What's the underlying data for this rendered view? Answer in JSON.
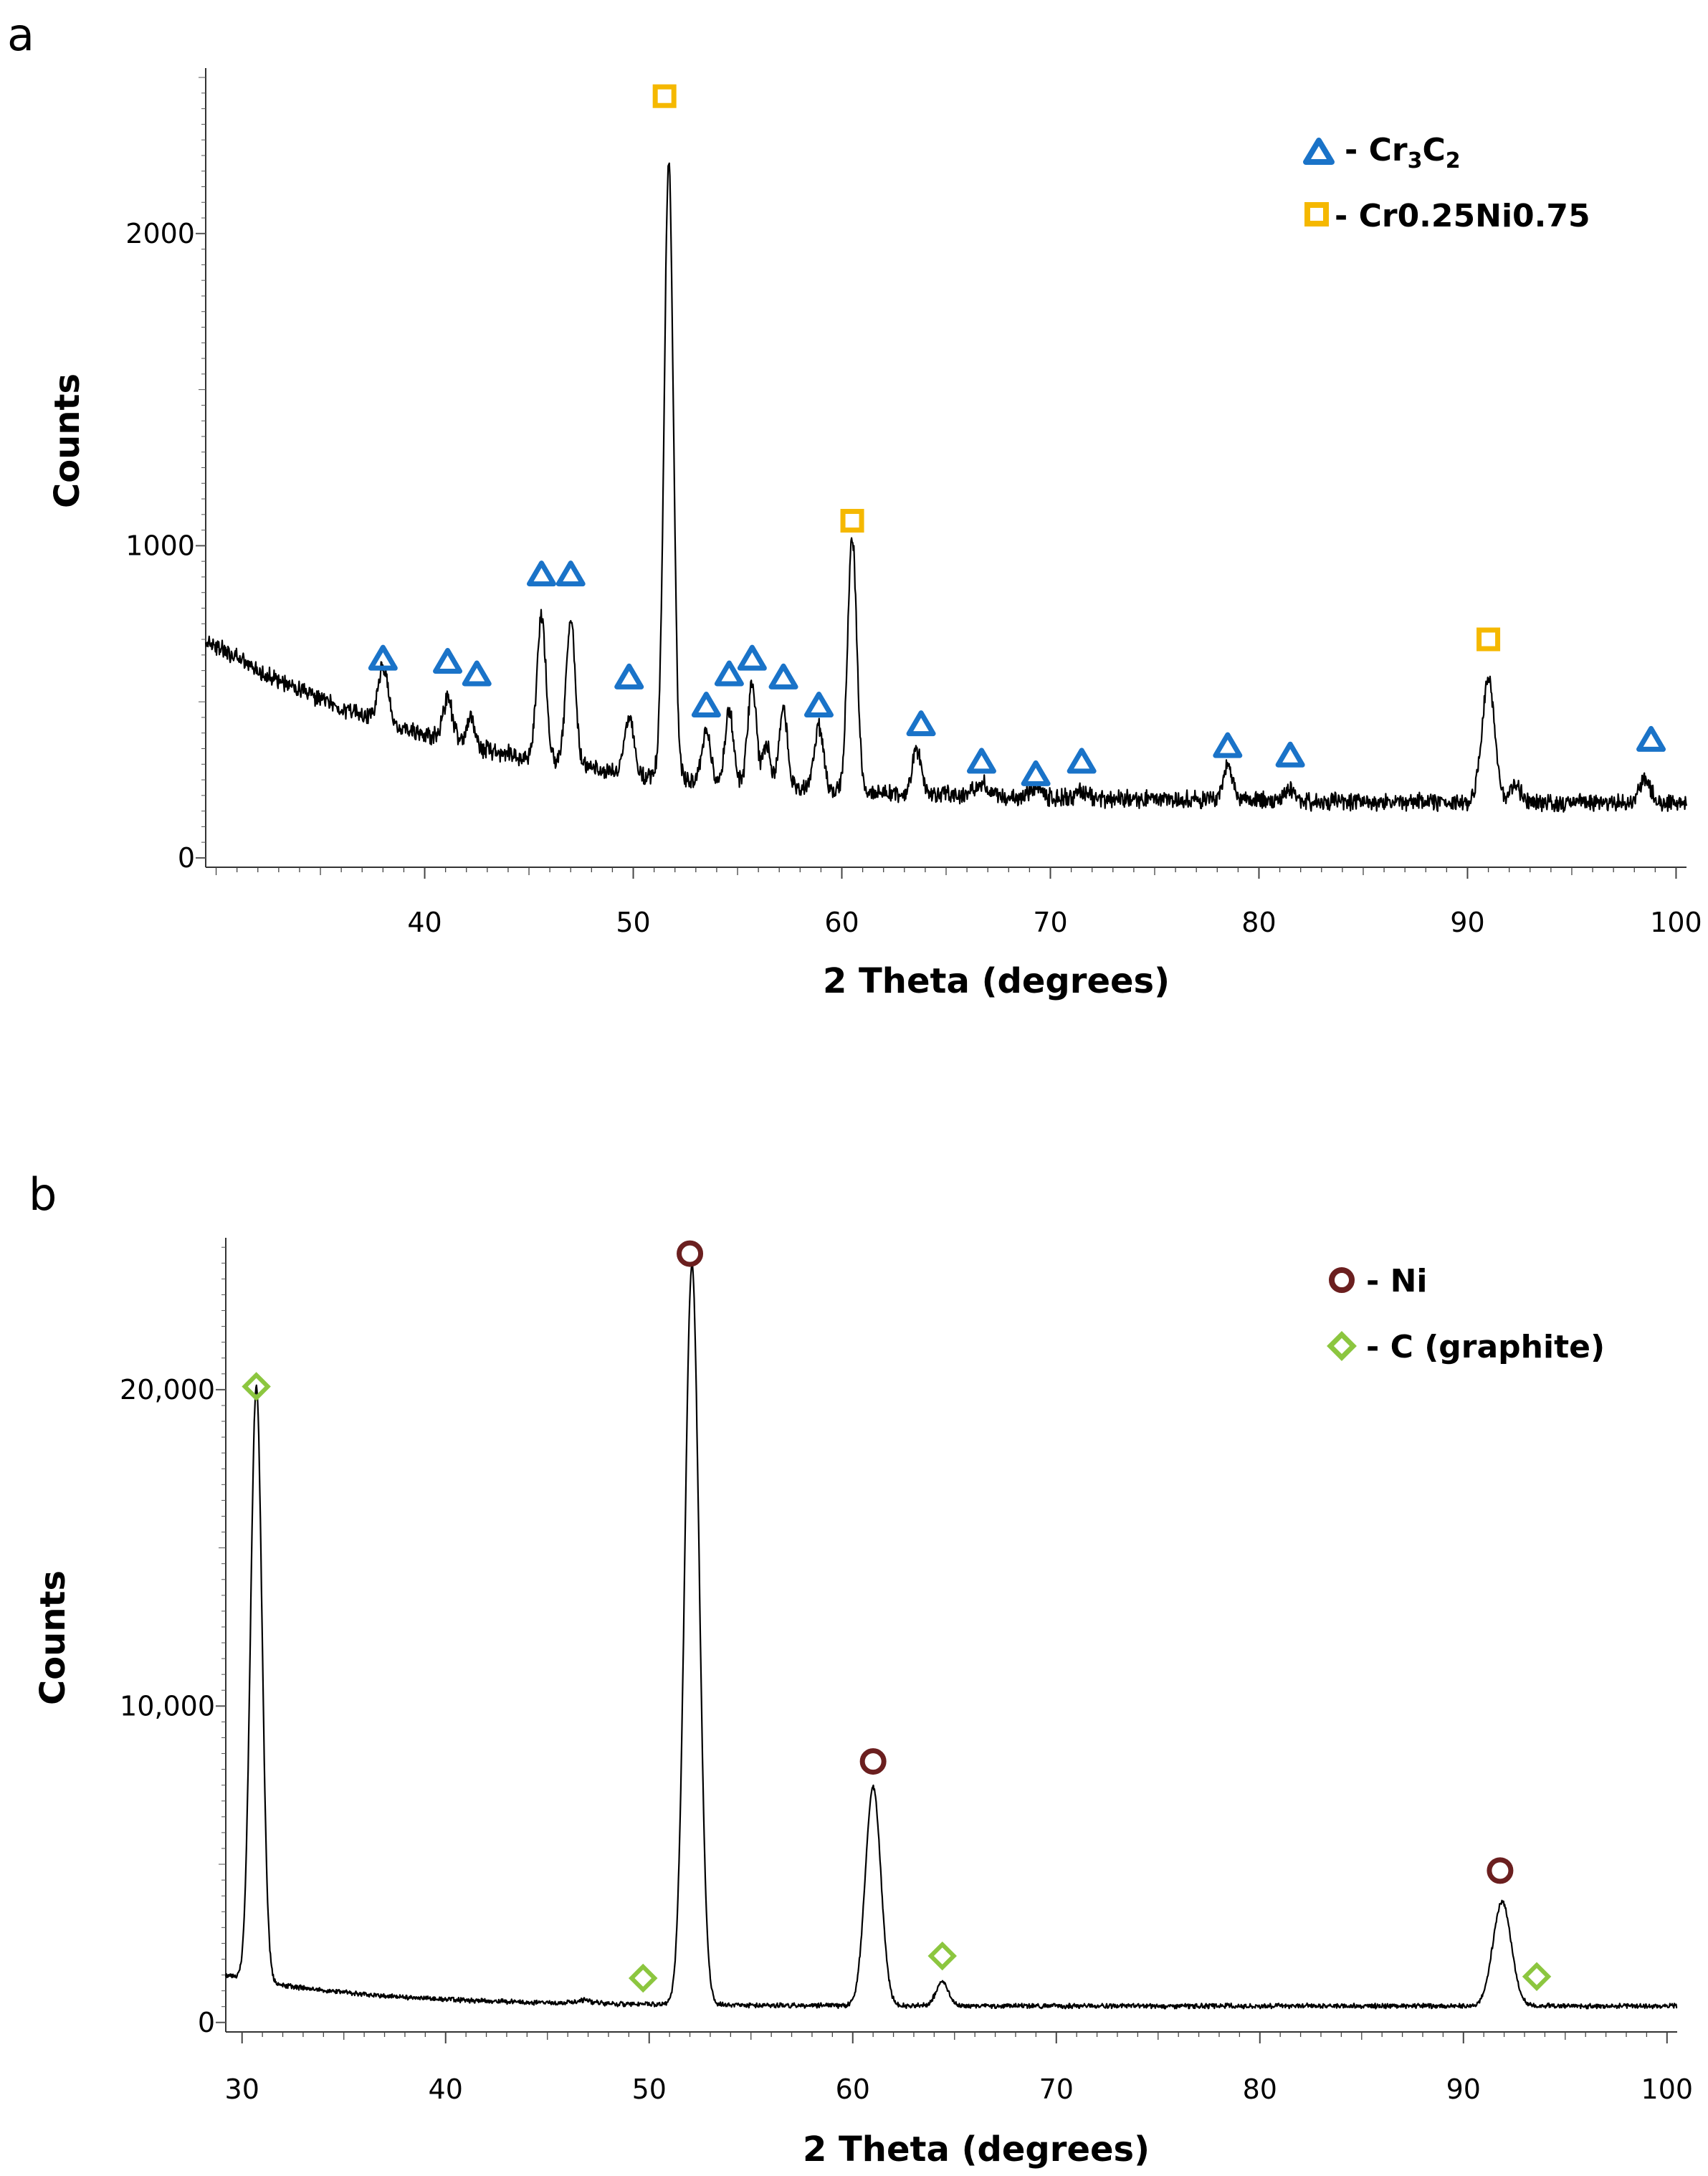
{
  "chart_data": [
    {
      "panel": "a",
      "type": "line",
      "xlabel": "2 Theta (degrees)",
      "ylabel": "Counts",
      "xlim": [
        29.5,
        100.5
      ],
      "ylim": [
        -30,
        2530
      ],
      "xticks": [
        40,
        50,
        60,
        70,
        80,
        90,
        100
      ],
      "yticks": [
        0,
        1000,
        2000
      ],
      "ytick_labels": [
        "0",
        "1000",
        "2000"
      ],
      "background": {
        "start": 700,
        "decay": 12,
        "floor": 175
      },
      "noise": 22,
      "series": [
        {
          "name": "pattern",
          "peaks": [
            [
              38.0,
              175,
              0.25
            ],
            [
              41.1,
              130,
              0.25
            ],
            [
              42.2,
              90,
              0.2
            ],
            [
              45.6,
              460,
              0.22
            ],
            [
              47.0,
              470,
              0.22
            ],
            [
              49.8,
              180,
              0.22
            ],
            [
              51.7,
              1970,
              0.22
            ],
            [
              53.5,
              160,
              0.2
            ],
            [
              54.6,
              230,
              0.2
            ],
            [
              55.7,
              330,
              0.2
            ],
            [
              56.4,
              130,
              0.18
            ],
            [
              57.2,
              250,
              0.2
            ],
            [
              58.9,
              200,
              0.22
            ],
            [
              60.5,
              810,
              0.22
            ],
            [
              63.6,
              140,
              0.22
            ],
            [
              66.7,
              40,
              0.3
            ],
            [
              69.3,
              30,
              0.3
            ],
            [
              71.5,
              20,
              0.3
            ],
            [
              78.5,
              120,
              0.22
            ],
            [
              81.5,
              40,
              0.25
            ],
            [
              91.0,
              400,
              0.3
            ],
            [
              92.3,
              50,
              0.3
            ],
            [
              98.5,
              80,
              0.25
            ]
          ]
        }
      ],
      "markers": [
        {
          "series": "Cr3C2",
          "shape": "triangle",
          "x": [
            38.0,
            41.1,
            42.5,
            45.6,
            47.0,
            49.8,
            53.5,
            54.6,
            55.7,
            57.2,
            58.9,
            63.8,
            66.7,
            69.3,
            71.5,
            78.5,
            81.5,
            98.8
          ],
          "y": [
            640,
            630,
            590,
            910,
            910,
            580,
            490,
            590,
            640,
            580,
            490,
            430,
            310,
            270,
            310,
            360,
            330,
            380
          ]
        },
        {
          "series": "Cr0.25Ni0.75",
          "shape": "square",
          "x": [
            51.5,
            60.5,
            91.0
          ],
          "y": [
            2440,
            1080,
            700
          ]
        }
      ],
      "legend": {
        "position": "top-right",
        "entries": [
          {
            "label_main": "- Cr",
            "sub1": "3",
            "mid": "C",
            "sub2": "2",
            "shape": "triangle",
            "color": "#1a73c8"
          },
          {
            "label": "- Cr0.25Ni0.75",
            "shape": "square",
            "color": "#f5b800"
          }
        ]
      }
    },
    {
      "panel": "b",
      "type": "line",
      "xlabel": "2 Theta (degrees)",
      "ylabel": "Counts",
      "xlim": [
        29.2,
        100.5
      ],
      "ylim": [
        -300,
        24800
      ],
      "xticks": [
        30,
        40,
        50,
        60,
        70,
        80,
        90,
        100
      ],
      "yticks": [
        0,
        10000,
        20000
      ],
      "ytick_labels": [
        "0",
        "10,000",
        "20,000"
      ],
      "background": {
        "start": 1500,
        "decay": 7,
        "floor": 520
      },
      "noise": 60,
      "series": [
        {
          "name": "pattern",
          "peaks": [
            [
              30.7,
              18800,
              0.28
            ],
            [
              52.1,
              23400,
              0.35
            ],
            [
              61.0,
              6900,
              0.38
            ],
            [
              64.4,
              750,
              0.3
            ],
            [
              91.9,
              3300,
              0.45
            ],
            [
              46.8,
              100,
              0.4
            ]
          ]
        }
      ],
      "markers": [
        {
          "series": "Ni",
          "shape": "circle",
          "x": [
            52.0,
            61.0,
            91.8
          ],
          "y": [
            24300,
            8250,
            4800
          ]
        },
        {
          "series": "C (graphite)",
          "shape": "diamond",
          "x": [
            30.7,
            49.7,
            64.4,
            93.6
          ],
          "y": [
            20100,
            1400,
            2100,
            1450
          ]
        }
      ],
      "legend": {
        "position": "top-right",
        "entries": [
          {
            "label": "- Ni",
            "shape": "circle",
            "color": "#6b1f1f"
          },
          {
            "label": "- C (graphite)",
            "shape": "diamond",
            "color": "#8cc63f"
          }
        ]
      }
    }
  ],
  "panels": {
    "a": {
      "letter": "a"
    },
    "b": {
      "letter": "b"
    }
  },
  "colors": {
    "line": "#000000",
    "triangle": "#1a73c8",
    "square": "#f5b800",
    "circle": "#6b1f1f",
    "diamond": "#8cc63f"
  }
}
